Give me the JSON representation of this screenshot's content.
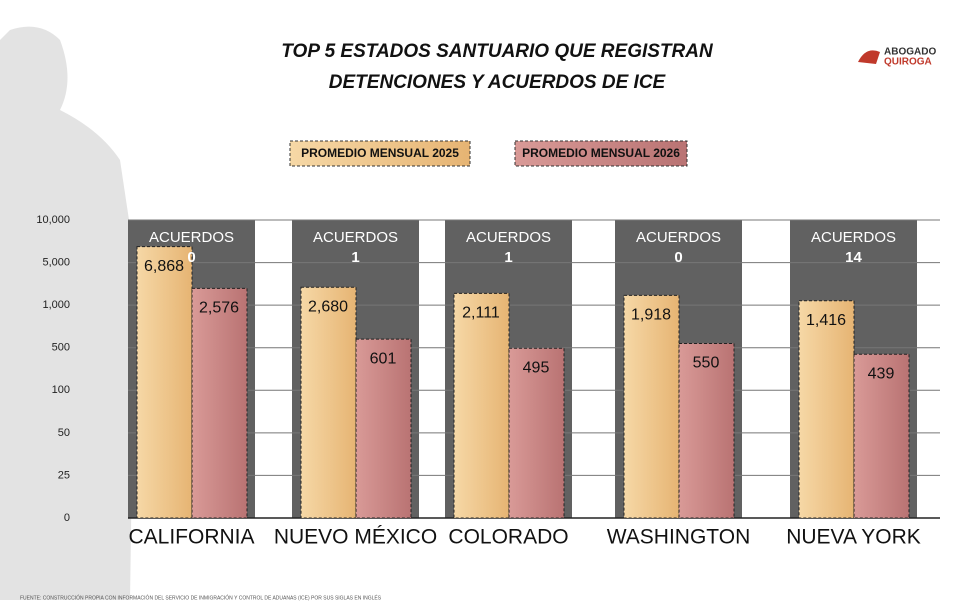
{
  "chart_data": {
    "type": "bar",
    "title": "TOP 5 ESTADOS SANTUARIO QUE REGISTRAN DETENCIONES Y ACUERDOS DE ICE",
    "logo": {
      "line1": "ABOGADO",
      "line2": "QUIROGA"
    },
    "categories": [
      "CALIFORNIA",
      "NUEVO MÉXICO",
      "COLORADO",
      "WASHINGTON",
      "NUEVA YORK"
    ],
    "series": [
      {
        "name": "PROMEDIO MENSUAL 2025",
        "color": "#f0c48a",
        "values": [
          6868,
          2680,
          2111,
          1918,
          1416
        ],
        "value_labels": [
          "6,868",
          "2,680",
          "2,111",
          "1,918",
          "1,416"
        ]
      },
      {
        "name": "PROMEDIO MENSUAL 2026",
        "color": "#c98585",
        "values": [
          2576,
          601,
          495,
          550,
          439
        ],
        "value_labels": [
          "2,576",
          "601",
          "495",
          "550",
          "439"
        ]
      }
    ],
    "agreements": {
      "label": "ACUERDOS",
      "values": [
        0,
        1,
        1,
        0,
        14
      ]
    },
    "ylim": [
      0,
      10000
    ],
    "yticks": [
      0,
      25,
      50,
      100,
      500,
      {
        "value": 1000,
        "label": "1,000"
      },
      {
        "value": 5000,
        "label": "5,000"
      },
      {
        "value": 10000,
        "label": "10,000"
      }
    ],
    "grid": true,
    "source": "FUENTE: CONSTRUCCIÓN PROPIA CON INFORMACIÓN DEL SERVICIO DE INMIGRACIÓN Y CONTROL DE ADUANAS (ICE) POR SUS SIGLAS EN INGLÉS"
  }
}
